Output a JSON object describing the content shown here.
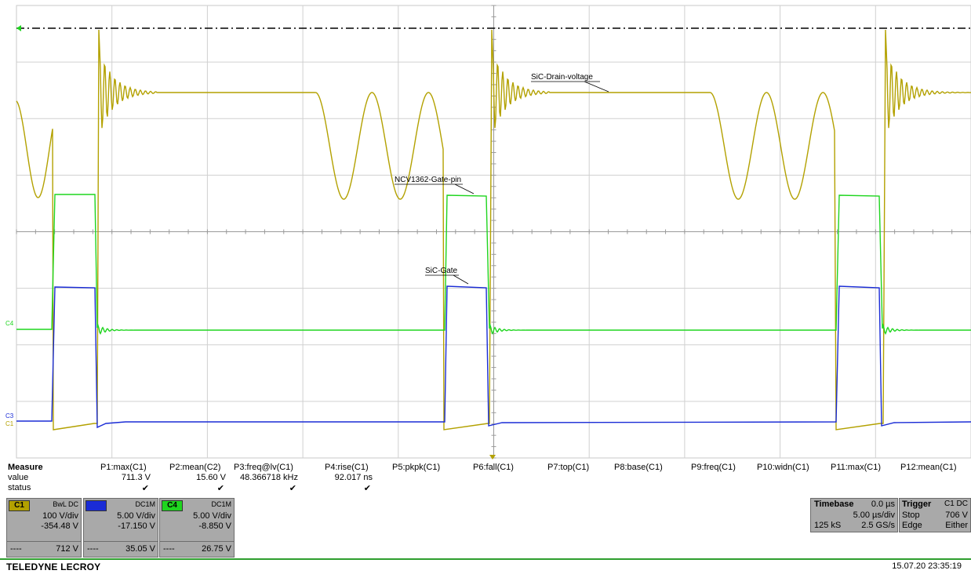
{
  "labels": {
    "drain": "SiC-Drain-voltage",
    "ncv": "NCV1362-Gate-pin",
    "gate": "SiC-Gate",
    "c4": "C4",
    "c3": "C3",
    "c1": "C1"
  },
  "measure": {
    "title": "Measure",
    "value_label": "value",
    "status_label": "status",
    "columns": [
      {
        "name": "P1:max(C1)",
        "value": "711.3 V",
        "status": "✔"
      },
      {
        "name": "P2:mean(C2)",
        "value": "15.60 V",
        "status": "✔"
      },
      {
        "name": "P3:freq@lv(C1)",
        "value": "48.366718 kHz",
        "status": "✔"
      },
      {
        "name": "P4:rise(C1)",
        "value": "92.017 ns",
        "status": "✔"
      },
      {
        "name": "P5:pkpk(C1)",
        "value": "",
        "status": ""
      },
      {
        "name": "P6:fall(C1)",
        "value": "",
        "status": ""
      },
      {
        "name": "P7:top(C1)",
        "value": "",
        "status": ""
      },
      {
        "name": "P8:base(C1)",
        "value": "",
        "status": ""
      },
      {
        "name": "P9:freq(C1)",
        "value": "",
        "status": ""
      },
      {
        "name": "P10:widn(C1)",
        "value": "",
        "status": ""
      },
      {
        "name": "P11:max(C1)",
        "value": "",
        "status": ""
      },
      {
        "name": "P12:mean(C1)",
        "value": "",
        "status": ""
      }
    ]
  },
  "channels": [
    {
      "tag": "C1",
      "coupling": "BwL DC",
      "scale": "100 V/div",
      "offset": "-354.48 V",
      "dashes": "----",
      "reading": "712 V",
      "tag_color": "#b3a100"
    },
    {
      "tag": "C3",
      "coupling": "DC1M",
      "scale": "5.00 V/div",
      "offset": "-17.150 V",
      "dashes": "----",
      "reading": "35.05 V",
      "tag_color": "#1a2cd6"
    },
    {
      "tag": "C4",
      "coupling": "DC1M",
      "scale": "5.00 V/div",
      "offset": "-8.850 V",
      "dashes": "----",
      "reading": "26.75 V",
      "tag_color": "#1fd51f"
    }
  ],
  "timebase": {
    "title": "Timebase",
    "delay": "0.0 µs",
    "per_div": "5.00 µs/div",
    "samples": "125 kS",
    "rate": "2.5 GS/s"
  },
  "trigger": {
    "title": "Trigger",
    "source": "C1 DC",
    "mode": "Stop",
    "level": "706 V",
    "type": "Edge",
    "slope": "Either"
  },
  "brand": "TELEDYNE LECROY",
  "timestamp": "15.07.20 23:35:19",
  "colors": {
    "c1": "#b3a100",
    "c3": "#1a2cd6",
    "c4": "#1fd51f",
    "grid": "#c8c8c8",
    "panel": "#a9a9a9"
  }
}
